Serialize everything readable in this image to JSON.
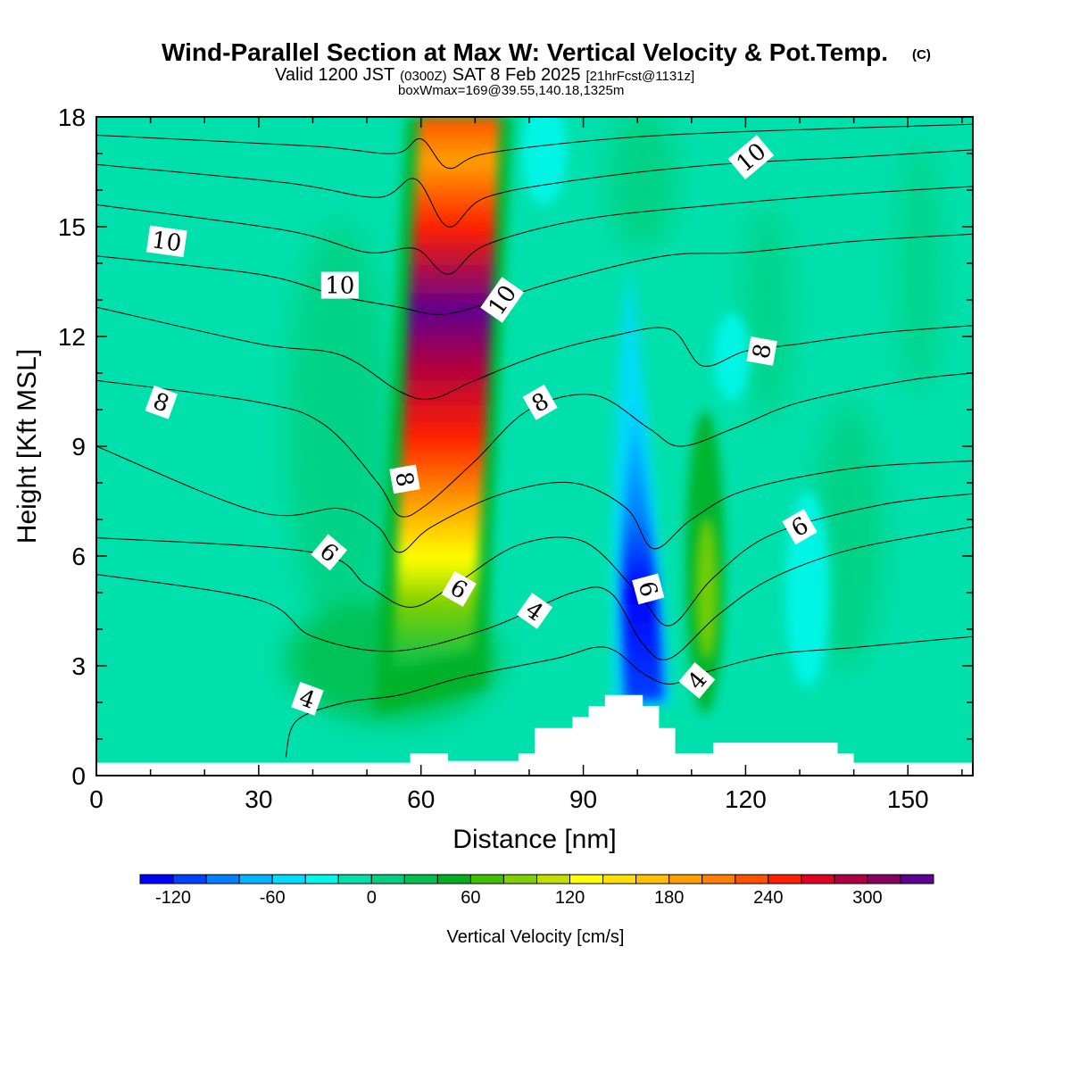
{
  "header": {
    "title": "Wind-Parallel Section at Max W: Vertical Velocity & Pot.Temp.",
    "copyright": "(C)",
    "valid_prefix": "Valid 1200 JST",
    "utc": "(0300Z)",
    "valid_date": "SAT 8 Feb 2025",
    "forecast": "[21hrFcst@1131z]",
    "box_info": "boxWmax=169@39.55,140.18,1325m"
  },
  "chart_data": {
    "type": "heatmap",
    "xlabel": "Distance [nm]",
    "ylabel": "Height [Kft MSL]",
    "xlim": [
      0,
      162
    ],
    "ylim": [
      0,
      18
    ],
    "x_ticks": [
      "0",
      "30",
      "60",
      "90",
      "120",
      "150"
    ],
    "y_ticks": [
      "0",
      "3",
      "6",
      "9",
      "12",
      "15",
      "18"
    ],
    "colorbar": {
      "label": "Vertical Velocity [cm/s]",
      "tick_labels": [
        "-120",
        "-60",
        "0",
        "60",
        "120",
        "180",
        "240",
        "300"
      ],
      "bins": [
        -140,
        -120,
        -100,
        -80,
        -60,
        -40,
        -20,
        0,
        20,
        40,
        60,
        80,
        100,
        120,
        140,
        160,
        180,
        200,
        220,
        240,
        260,
        280,
        300,
        320,
        340
      ],
      "colors": [
        "#0000ff",
        "#0040ff",
        "#0080ff",
        "#00b4ff",
        "#00dcff",
        "#00f8ec",
        "#00e0ac",
        "#00d080",
        "#00c050",
        "#00b020",
        "#40c000",
        "#80d000",
        "#c0e000",
        "#ffff00",
        "#ffe000",
        "#ffc000",
        "#ffa000",
        "#ff8000",
        "#ff5000",
        "#ff2000",
        "#e00020",
        "#b00040",
        "#880060",
        "#600090"
      ]
    },
    "terrain": [
      [
        58,
        0
      ],
      [
        58,
        0.6
      ],
      [
        65,
        0.6
      ],
      [
        65,
        0.4
      ],
      [
        78,
        0.4
      ],
      [
        78,
        0.6
      ],
      [
        81,
        0.6
      ],
      [
        81,
        1.3
      ],
      [
        88,
        1.3
      ],
      [
        88,
        1.6
      ],
      [
        91,
        1.6
      ],
      [
        91,
        1.9
      ],
      [
        94,
        1.9
      ],
      [
        94,
        2.2
      ],
      [
        101,
        2.2
      ],
      [
        101,
        1.9
      ],
      [
        104,
        1.9
      ],
      [
        104,
        1.3
      ],
      [
        107,
        1.3
      ],
      [
        107,
        0.6
      ],
      [
        114,
        0.6
      ],
      [
        114,
        0.9
      ],
      [
        137,
        0.9
      ],
      [
        137,
        0.6
      ],
      [
        140,
        0.6
      ],
      [
        140,
        0
      ]
    ],
    "updraft": {
      "x": 65,
      "y": 12.5,
      "peak": 330
    },
    "downdraft": {
      "x": 101,
      "y": 3.6,
      "min": -125
    },
    "theta_contours": [
      {
        "label": "4",
        "points": [
          [
            35,
            0.5
          ],
          [
            37,
            1.5
          ],
          [
            46,
            2
          ],
          [
            56,
            2.2
          ],
          [
            68,
            2.7
          ],
          [
            85,
            3.2
          ],
          [
            92,
            3.5
          ],
          [
            96,
            3.4
          ],
          [
            101,
            2.8
          ],
          [
            106,
            2.5
          ],
          [
            112,
            2.8
          ],
          [
            125,
            3.3
          ],
          [
            140,
            3.5
          ],
          [
            162,
            3.8
          ]
        ]
      },
      {
        "label": "4",
        "points": [
          [
            0,
            5.5
          ],
          [
            30,
            4.8
          ],
          [
            40,
            3.8
          ],
          [
            55,
            3.4
          ],
          [
            72,
            4
          ],
          [
            88,
            5
          ],
          [
            95,
            5
          ],
          [
            101,
            3.6
          ],
          [
            106,
            3.2
          ],
          [
            115,
            4.4
          ],
          [
            125,
            5.4
          ],
          [
            140,
            6.2
          ],
          [
            162,
            6.8
          ]
        ]
      },
      {
        "label": "6",
        "points": [
          [
            0,
            6.5
          ],
          [
            40,
            6.1
          ],
          [
            50,
            5.2
          ],
          [
            58,
            4.6
          ],
          [
            66,
            5.2
          ],
          [
            78,
            6.3
          ],
          [
            90,
            6.4
          ],
          [
            100,
            5
          ],
          [
            106,
            4.1
          ],
          [
            114,
            5.4
          ],
          [
            125,
            6.6
          ],
          [
            145,
            7.4
          ],
          [
            162,
            7.7
          ]
        ]
      },
      {
        "label": "6",
        "points": [
          [
            0,
            9
          ],
          [
            30,
            7.2
          ],
          [
            45,
            7.3
          ],
          [
            52,
            6.8
          ],
          [
            56,
            6.1
          ],
          [
            62,
            6.8
          ],
          [
            75,
            7.7
          ],
          [
            88,
            8
          ],
          [
            98,
            7.3
          ],
          [
            103,
            6.2
          ],
          [
            110,
            7
          ],
          [
            120,
            7.8
          ],
          [
            140,
            8.4
          ],
          [
            162,
            8.6
          ]
        ]
      },
      {
        "label": "8",
        "points": [
          [
            0,
            10.8
          ],
          [
            30,
            10.2
          ],
          [
            42,
            9.6
          ],
          [
            52,
            8
          ],
          [
            56,
            7.1
          ],
          [
            61,
            7.4
          ],
          [
            70,
            8.6
          ],
          [
            80,
            10
          ],
          [
            92,
            10.4
          ],
          [
            102,
            9.5
          ],
          [
            108,
            9
          ],
          [
            118,
            9.5
          ],
          [
            130,
            10.2
          ],
          [
            150,
            10.8
          ],
          [
            162,
            11
          ]
        ]
      },
      {
        "label": "8",
        "points": [
          [
            0,
            12.8
          ],
          [
            30,
            11.8
          ],
          [
            45,
            11.5
          ],
          [
            56,
            10.5
          ],
          [
            62,
            10.3
          ],
          [
            70,
            10.8
          ],
          [
            82,
            11.5
          ],
          [
            95,
            12
          ],
          [
            106,
            12.2
          ],
          [
            112,
            11.2
          ],
          [
            120,
            11.6
          ],
          [
            130,
            11.8
          ],
          [
            145,
            12.1
          ],
          [
            162,
            12.3
          ]
        ]
      },
      {
        "label": "10",
        "points": [
          [
            0,
            14.2
          ],
          [
            30,
            13.7
          ],
          [
            45,
            13.1
          ],
          [
            56,
            12.8
          ],
          [
            63,
            12.6
          ],
          [
            70,
            12.8
          ],
          [
            85,
            13.5
          ],
          [
            105,
            14.2
          ],
          [
            120,
            14.3
          ],
          [
            140,
            14.6
          ],
          [
            162,
            14.8
          ]
        ]
      },
      {
        "label": "10",
        "points": [
          [
            0,
            15.6
          ],
          [
            35,
            14.9
          ],
          [
            50,
            14.3
          ],
          [
            59,
            14.4
          ],
          [
            65,
            13.7
          ],
          [
            72,
            14.5
          ],
          [
            90,
            15.2
          ],
          [
            115,
            15.6
          ],
          [
            140,
            15.9
          ],
          [
            162,
            16.1
          ]
        ]
      },
      {
        "label": "10",
        "points": [
          [
            0,
            16.7
          ],
          [
            35,
            16.2
          ],
          [
            52,
            15.8
          ],
          [
            59,
            16.3
          ],
          [
            65,
            15
          ],
          [
            72,
            15.8
          ],
          [
            90,
            16.3
          ],
          [
            115,
            16.7
          ],
          [
            140,
            16.9
          ],
          [
            162,
            17.1
          ]
        ]
      },
      {
        "label": "10",
        "points": [
          [
            0,
            17.5
          ],
          [
            40,
            17.2
          ],
          [
            55,
            17
          ],
          [
            60,
            17.4
          ],
          [
            65,
            16.6
          ],
          [
            72,
            17
          ],
          [
            95,
            17.4
          ],
          [
            120,
            17.6
          ],
          [
            162,
            17.8
          ]
        ]
      }
    ],
    "contour_labels": [
      {
        "text": "10",
        "x": 13,
        "y": 14.6,
        "angle": 8
      },
      {
        "text": "10",
        "x": 45,
        "y": 13.4,
        "angle": 0
      },
      {
        "text": "10",
        "x": 75,
        "y": 13,
        "angle": -55
      },
      {
        "text": "10",
        "x": 121,
        "y": 16.9,
        "angle": -40
      },
      {
        "text": "8",
        "x": 12,
        "y": 10.2,
        "angle": 20
      },
      {
        "text": "8",
        "x": 82,
        "y": 10.2,
        "angle": -30
      },
      {
        "text": "8",
        "x": 123,
        "y": 11.6,
        "angle": -80
      },
      {
        "text": "8",
        "x": 57,
        "y": 8.1,
        "angle": 80
      },
      {
        "text": "6",
        "x": 43,
        "y": 6.1,
        "angle": 40
      },
      {
        "text": "6",
        "x": 67,
        "y": 5.1,
        "angle": 30
      },
      {
        "text": "6",
        "x": 102,
        "y": 5.1,
        "angle": 75
      },
      {
        "text": "6",
        "x": 130,
        "y": 6.8,
        "angle": -30
      },
      {
        "text": "4",
        "x": 39,
        "y": 2.1,
        "angle": 20
      },
      {
        "text": "4",
        "x": 81,
        "y": 4.5,
        "angle": 35
      },
      {
        "text": "4",
        "x": 111,
        "y": 2.6,
        "angle": -50
      }
    ]
  }
}
